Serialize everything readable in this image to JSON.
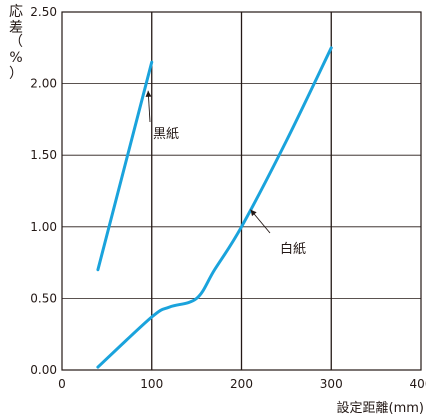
{
  "chart_data": {
    "type": "line",
    "title": "",
    "xlabel": "設定距離(mm)",
    "ylabel_chars": [
      "応",
      "差",
      "（",
      "%",
      "）"
    ],
    "xlim": [
      0,
      400
    ],
    "ylim": [
      0,
      2.5
    ],
    "x_ticks": [
      0,
      100,
      200,
      300,
      400
    ],
    "x_tick_labels": [
      "0",
      "100",
      "200",
      "300",
      "400"
    ],
    "y_ticks": [
      0,
      0.5,
      1.0,
      1.5,
      2.0,
      2.5
    ],
    "y_tick_labels": [
      "0.00",
      "0.50",
      "1.00",
      "1.50",
      "2.00",
      "2.50"
    ],
    "grid": "vertical and horizontal at major ticks",
    "line_color": "#1aa3dc",
    "series": [
      {
        "name": "黒紙",
        "x": [
          40,
          100
        ],
        "y": [
          0.7,
          2.15
        ]
      },
      {
        "name": "白紙",
        "x": [
          40,
          100,
          120,
          150,
          170,
          200,
          250,
          300
        ],
        "y": [
          0.02,
          0.37,
          0.44,
          0.5,
          0.7,
          1.0,
          1.6,
          2.25
        ]
      }
    ],
    "annotations": [
      {
        "text": "黒紙",
        "target_x": 96,
        "target_y": 1.95
      },
      {
        "text": "白紙",
        "target_x": 210,
        "target_y": 1.12
      }
    ]
  }
}
